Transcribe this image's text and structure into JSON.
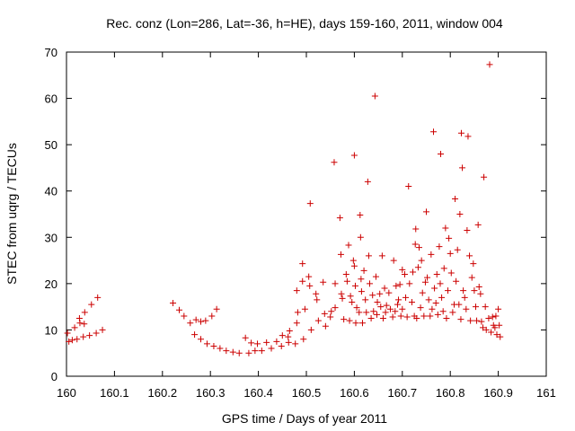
{
  "chart_data": {
    "type": "scatter",
    "title": "Rec. conz (Lon=286, Lat=-36, h=HE), days 159-160, 2011, window 004",
    "xlabel": "GPS time / Days of year 2011",
    "ylabel": "STEC from uqrg / TECUs",
    "xlim": [
      160,
      161
    ],
    "ylim": [
      0,
      70
    ],
    "x_ticks": [
      "160",
      "160.1",
      "160.2",
      "160.3",
      "160.4",
      "160.5",
      "160.6",
      "160.7",
      "160.8",
      "160.9",
      "161"
    ],
    "y_ticks": [
      "0",
      "10",
      "20",
      "30",
      "40",
      "50",
      "60",
      "70"
    ],
    "grid": false,
    "legend": "none",
    "marker": "plus",
    "color": "#cc0000",
    "points": [
      [
        160.002,
        9.3
      ],
      [
        160.005,
        7.5
      ],
      [
        160.012,
        7.8
      ],
      [
        160.017,
        10.5
      ],
      [
        160.022,
        8.0
      ],
      [
        160.027,
        12.5
      ],
      [
        160.028,
        11.5
      ],
      [
        160.035,
        8.5
      ],
      [
        160.037,
        11.3
      ],
      [
        160.038,
        13.8
      ],
      [
        160.048,
        8.8
      ],
      [
        160.052,
        15.5
      ],
      [
        160.062,
        9.3
      ],
      [
        160.065,
        17.0
      ],
      [
        160.075,
        10.0
      ],
      [
        160.222,
        15.8
      ],
      [
        160.235,
        14.3
      ],
      [
        160.245,
        13.0
      ],
      [
        160.258,
        11.5
      ],
      [
        160.267,
        9.0
      ],
      [
        160.27,
        12.2
      ],
      [
        160.28,
        8.0
      ],
      [
        160.28,
        11.8
      ],
      [
        160.29,
        12.0
      ],
      [
        160.293,
        7.0
      ],
      [
        160.303,
        13.0
      ],
      [
        160.307,
        6.5
      ],
      [
        160.313,
        14.5
      ],
      [
        160.32,
        6.0
      ],
      [
        160.333,
        5.5
      ],
      [
        160.347,
        5.2
      ],
      [
        160.36,
        5.0
      ],
      [
        160.373,
        8.3
      ],
      [
        160.38,
        5.0
      ],
      [
        160.385,
        7.2
      ],
      [
        160.393,
        5.5
      ],
      [
        160.398,
        7.0
      ],
      [
        160.407,
        5.5
      ],
      [
        160.417,
        7.3
      ],
      [
        160.427,
        6.0
      ],
      [
        160.438,
        7.5
      ],
      [
        160.448,
        6.5
      ],
      [
        160.45,
        8.8
      ],
      [
        160.462,
        8.5
      ],
      [
        160.463,
        7.3
      ],
      [
        160.465,
        9.8
      ],
      [
        160.477,
        7.0
      ],
      [
        160.48,
        11.5
      ],
      [
        160.48,
        18.5
      ],
      [
        160.482,
        13.8
      ],
      [
        160.492,
        24.3
      ],
      [
        160.492,
        20.5
      ],
      [
        160.494,
        8.0
      ],
      [
        160.497,
        14.5
      ],
      [
        160.505,
        21.5
      ],
      [
        160.507,
        19.5
      ],
      [
        160.508,
        37.3
      ],
      [
        160.51,
        10.0
      ],
      [
        160.52,
        17.8
      ],
      [
        160.522,
        16.5
      ],
      [
        160.525,
        12.0
      ],
      [
        160.535,
        20.3
      ],
      [
        160.538,
        13.5
      ],
      [
        160.54,
        10.8
      ],
      [
        160.55,
        12.8
      ],
      [
        160.552,
        14.0
      ],
      [
        160.558,
        46.2
      ],
      [
        160.56,
        20.0
      ],
      [
        160.56,
        14.8
      ],
      [
        160.57,
        34.2
      ],
      [
        160.572,
        26.3
      ],
      [
        160.573,
        17.8
      ],
      [
        160.575,
        16.8
      ],
      [
        160.578,
        12.3
      ],
      [
        160.583,
        22.0
      ],
      [
        160.585,
        20.5
      ],
      [
        160.588,
        28.3
      ],
      [
        160.59,
        12.0
      ],
      [
        160.592,
        17.3
      ],
      [
        160.595,
        16.0
      ],
      [
        160.598,
        25.0
      ],
      [
        160.6,
        23.8
      ],
      [
        160.6,
        47.7
      ],
      [
        160.602,
        19.5
      ],
      [
        160.603,
        11.5
      ],
      [
        160.605,
        14.8
      ],
      [
        160.61,
        13.8
      ],
      [
        160.612,
        34.8
      ],
      [
        160.613,
        30.0
      ],
      [
        160.614,
        21.0
      ],
      [
        160.615,
        18.3
      ],
      [
        160.617,
        11.5
      ],
      [
        160.62,
        22.8
      ],
      [
        160.623,
        16.5
      ],
      [
        160.625,
        13.8
      ],
      [
        160.628,
        42.0
      ],
      [
        160.63,
        26.0
      ],
      [
        160.632,
        20.0
      ],
      [
        160.635,
        12.5
      ],
      [
        160.638,
        17.5
      ],
      [
        160.64,
        14.0
      ],
      [
        160.643,
        60.5
      ],
      [
        160.645,
        21.5
      ],
      [
        160.647,
        13.3
      ],
      [
        160.648,
        16.0
      ],
      [
        160.653,
        17.8
      ],
      [
        160.655,
        15.0
      ],
      [
        160.658,
        26.0
      ],
      [
        160.66,
        12.5
      ],
      [
        160.663,
        19.0
      ],
      [
        160.665,
        13.8
      ],
      [
        160.667,
        15.3
      ],
      [
        160.672,
        18.0
      ],
      [
        160.675,
        14.5
      ],
      [
        160.68,
        12.8
      ],
      [
        160.682,
        25.0
      ],
      [
        160.685,
        14.0
      ],
      [
        160.687,
        19.5
      ],
      [
        160.69,
        15.5
      ],
      [
        160.692,
        16.5
      ],
      [
        160.695,
        19.8
      ],
      [
        160.697,
        13.0
      ],
      [
        160.7,
        23.0
      ],
      [
        160.7,
        14.5
      ],
      [
        160.705,
        22.0
      ],
      [
        160.707,
        17.0
      ],
      [
        160.71,
        12.8
      ],
      [
        160.713,
        41.0
      ],
      [
        160.715,
        20.0
      ],
      [
        160.72,
        16.0
      ],
      [
        160.722,
        22.5
      ],
      [
        160.725,
        13.0
      ],
      [
        160.727,
        28.5
      ],
      [
        160.728,
        31.8
      ],
      [
        160.73,
        12.5
      ],
      [
        160.733,
        23.5
      ],
      [
        160.735,
        27.8
      ],
      [
        160.738,
        14.8
      ],
      [
        160.74,
        25.0
      ],
      [
        160.742,
        18.0
      ],
      [
        160.745,
        13.0
      ],
      [
        160.748,
        20.3
      ],
      [
        160.75,
        35.5
      ],
      [
        160.752,
        21.3
      ],
      [
        160.755,
        16.5
      ],
      [
        160.758,
        13.0
      ],
      [
        160.76,
        26.3
      ],
      [
        160.762,
        14.5
      ],
      [
        160.765,
        52.8
      ],
      [
        160.767,
        19.0
      ],
      [
        160.77,
        15.8
      ],
      [
        160.772,
        22.0
      ],
      [
        160.774,
        13.3
      ],
      [
        160.777,
        28.0
      ],
      [
        160.779,
        20.0
      ],
      [
        160.78,
        48.0
      ],
      [
        160.782,
        17.0
      ],
      [
        160.785,
        14.0
      ],
      [
        160.787,
        23.3
      ],
      [
        160.79,
        32.0
      ],
      [
        160.792,
        12.5
      ],
      [
        160.795,
        18.5
      ],
      [
        160.797,
        29.8
      ],
      [
        160.8,
        26.5
      ],
      [
        160.802,
        22.3
      ],
      [
        160.805,
        13.8
      ],
      [
        160.808,
        15.5
      ],
      [
        160.81,
        38.3
      ],
      [
        160.812,
        20.5
      ],
      [
        160.815,
        27.3
      ],
      [
        160.818,
        15.5
      ],
      [
        160.82,
        35.0
      ],
      [
        160.822,
        12.3
      ],
      [
        160.823,
        52.5
      ],
      [
        160.825,
        45.0
      ],
      [
        160.827,
        18.5
      ],
      [
        160.83,
        17.0
      ],
      [
        160.833,
        14.5
      ],
      [
        160.835,
        31.5
      ],
      [
        160.837,
        51.8
      ],
      [
        160.84,
        26.0
      ],
      [
        160.842,
        12.0
      ],
      [
        160.845,
        21.3
      ],
      [
        160.848,
        24.3
      ],
      [
        160.85,
        18.5
      ],
      [
        160.853,
        15.0
      ],
      [
        160.855,
        12.0
      ],
      [
        160.858,
        32.7
      ],
      [
        160.86,
        19.3
      ],
      [
        160.863,
        17.8
      ],
      [
        160.865,
        11.8
      ],
      [
        160.868,
        10.5
      ],
      [
        160.87,
        43.0
      ],
      [
        160.873,
        15.0
      ],
      [
        160.875,
        10.0
      ],
      [
        160.88,
        12.5
      ],
      [
        160.882,
        67.3
      ],
      [
        160.885,
        9.5
      ],
      [
        160.888,
        12.8
      ],
      [
        160.89,
        11.0
      ],
      [
        160.893,
        10.5
      ],
      [
        160.895,
        13.0
      ],
      [
        160.897,
        9.0
      ],
      [
        160.9,
        14.5
      ],
      [
        160.902,
        11.0
      ],
      [
        160.904,
        8.5
      ]
    ]
  }
}
